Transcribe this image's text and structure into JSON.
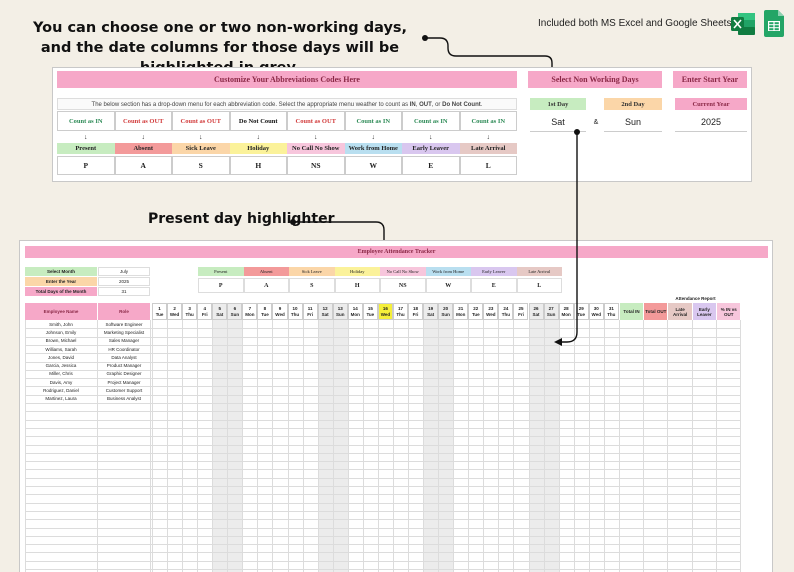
{
  "headline": "You can choose one or two non-working days, and the date columns for those days will be highlighted in grey.",
  "included_text": "Included both MS Excel and Google Sheets",
  "icons": {
    "excel": "excel-icon",
    "sheets": "google-sheets-icon"
  },
  "abbrev": {
    "title": "Customize Your Abbreviations Codes Here",
    "note_prefix": "The below section has a drop-down menu for each abbreviation code. Select the appropriate menu weather to count as ",
    "note_in": "IN",
    "note_mid": ", ",
    "note_out": "OUT",
    "note_mid2": ", or ",
    "note_dnc": "Do Not Count",
    "note_end": ".",
    "codes": [
      {
        "count": "Count as IN",
        "label": "Present",
        "letter": "P",
        "count_color": "#2e8b57",
        "label_bg": "#c7ecc0"
      },
      {
        "count": "Count as OUT",
        "label": "Absent",
        "letter": "A",
        "count_color": "#d23c3c",
        "label_bg": "#f39a9a"
      },
      {
        "count": "Count as OUT",
        "label": "Sick Leave",
        "letter": "S",
        "count_color": "#d23c3c",
        "label_bg": "#fbd6a8"
      },
      {
        "count": "Do Not Count",
        "label": "Holiday",
        "letter": "H",
        "count_color": "#111111",
        "label_bg": "#fbf29a"
      },
      {
        "count": "Count as OUT",
        "label": "No Call No Show",
        "letter": "NS",
        "count_color": "#d23c3c",
        "label_bg": "#f7c6dc"
      },
      {
        "count": "Count as IN",
        "label": "Work from Home",
        "letter": "W",
        "count_color": "#2e8b57",
        "label_bg": "#b9dff0"
      },
      {
        "count": "Count as IN",
        "label": "Early Leaver",
        "letter": "E",
        "count_color": "#2e8b57",
        "label_bg": "#d9c7ef"
      },
      {
        "count": "Count as IN",
        "label": "Late Arrival",
        "letter": "L",
        "count_color": "#2e8b57",
        "label_bg": "#e6c9c5"
      }
    ],
    "arrow": "↓"
  },
  "nonworking": {
    "title": "Select Non Working Days",
    "first_label": "1st Day",
    "second_label": "2nd Day",
    "first_value": "Sat",
    "amp": "&",
    "second_value": "Sun"
  },
  "startyear": {
    "title": "Enter Start Year",
    "current_label": "Current Year",
    "year": "2025"
  },
  "present_callout": "Present day highlighter",
  "tracker": {
    "title": "Employee Attendance Tracker",
    "select_month_label": "Select Month",
    "select_month_value": "July",
    "enter_year_label": "Enter the Year",
    "enter_year_value": "2025",
    "total_days_label": "Total Days of the Month",
    "total_days_value": "31",
    "legend": [
      {
        "label": "Present",
        "letter": "P",
        "bg": "#c7ecc0"
      },
      {
        "label": "Absent",
        "letter": "A",
        "bg": "#f39a9a"
      },
      {
        "label": "Sick Leave",
        "letter": "S",
        "bg": "#fbd6a8"
      },
      {
        "label": "Holiday",
        "letter": "H",
        "bg": "#fbf29a"
      },
      {
        "label": "No Call No Show",
        "letter": "NS",
        "bg": "#f7c6dc"
      },
      {
        "label": "Work from Home",
        "letter": "W",
        "bg": "#b9dff0"
      },
      {
        "label": "Early Leaver",
        "letter": "E",
        "bg": "#d9c7ef"
      },
      {
        "label": "Late Arrival",
        "letter": "L",
        "bg": "#e6c9c5"
      }
    ],
    "col_name": "Employee Name",
    "col_role": "Role",
    "report_title": "Attendance Report",
    "report_cols": [
      {
        "label": "Total IN",
        "bg": "#c7ecc0"
      },
      {
        "label": "Total OUT",
        "bg": "#f39a9a"
      },
      {
        "label": "Late Arrival",
        "bg": "#e6c9c5"
      },
      {
        "label": "Early Leaver",
        "bg": "#d9c7ef"
      },
      {
        "label": "% IN vs OUT",
        "bg": "#f7c6dc"
      }
    ],
    "days": [
      "1",
      "2",
      "3",
      "4",
      "5",
      "6",
      "7",
      "8",
      "9",
      "10",
      "11",
      "12",
      "13",
      "14",
      "15",
      "16",
      "17",
      "18",
      "19",
      "20",
      "21",
      "22",
      "23",
      "24",
      "25",
      "26",
      "27",
      "28",
      "29",
      "30",
      "31"
    ],
    "weekdays": [
      "Tue",
      "Wed",
      "Thu",
      "Fri",
      "Sat",
      "Sun",
      "Mon",
      "Tue",
      "Wed",
      "Thu",
      "Fri",
      "Sat",
      "Sun",
      "Mon",
      "Tue",
      "Wed",
      "Thu",
      "Fri",
      "Sat",
      "Sun",
      "Mon",
      "Tue",
      "Wed",
      "Thu",
      "Fri",
      "Sat",
      "Sun",
      "Mon",
      "Tue",
      "Wed",
      "Thu"
    ],
    "today_index": 15,
    "weekend_color": "#ececec",
    "today_color": "#f5ef3a",
    "employees": [
      {
        "name": "Smith, John",
        "role": "Software Engineer"
      },
      {
        "name": "Johnson, Emily",
        "role": "Marketing Specialist"
      },
      {
        "name": "Brown, Michael",
        "role": "Sales Manager"
      },
      {
        "name": "Williams, Sarah",
        "role": "HR Coordinator"
      },
      {
        "name": "Jones, David",
        "role": "Data Analyst"
      },
      {
        "name": "Garcia, Jessica",
        "role": "Product Manager"
      },
      {
        "name": "Miller, Chris",
        "role": "Graphic Designer"
      },
      {
        "name": "Davis, Amy",
        "role": "Project Manager"
      },
      {
        "name": "Rodriguez, Daniel",
        "role": "Customer Support"
      },
      {
        "name": "Martinez, Laura",
        "role": "Business Analyst"
      }
    ]
  },
  "colors": {
    "pink_header": "#f6a8c8",
    "pink_text": "#8a2846",
    "background": "#f3efe6"
  }
}
